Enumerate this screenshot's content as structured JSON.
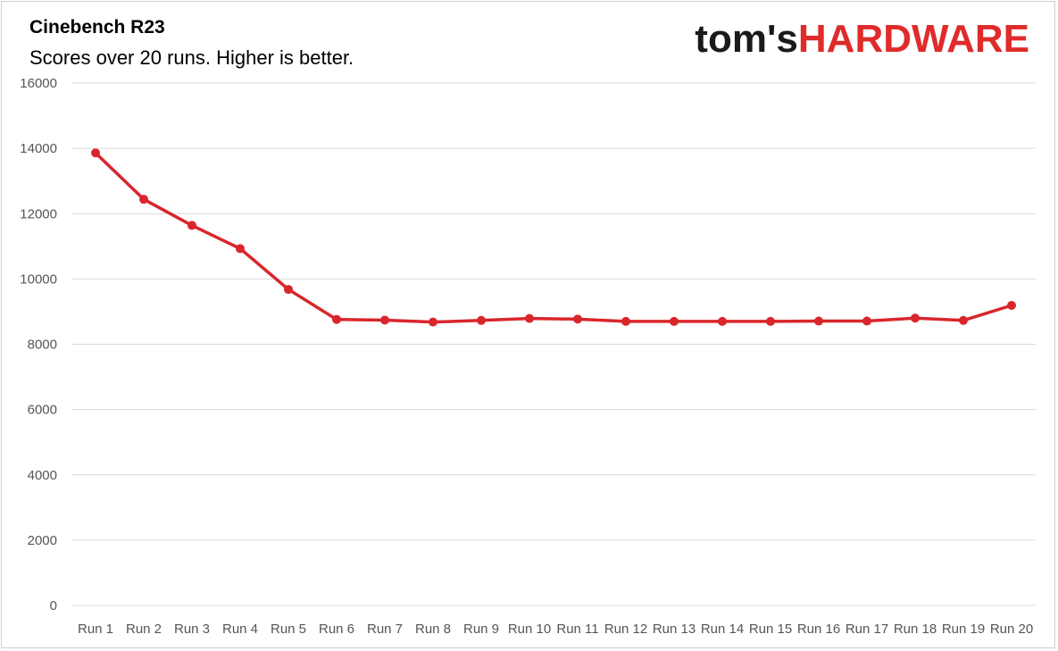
{
  "header": {
    "title": "Cinebench R23",
    "subtitle": "Scores over 20 runs. Higher is better."
  },
  "logo": {
    "part1": "tom's",
    "part2": "HARDWARE"
  },
  "colors": {
    "series": "#d9262c",
    "grid": "#d9d9d9",
    "logo_accent": "#e02b2b"
  },
  "chart_data": {
    "type": "line",
    "title": "Cinebench R23",
    "subtitle": "Scores over 20 runs. Higher is better.",
    "xlabel": "",
    "ylabel": "",
    "ylim": [
      0,
      16000
    ],
    "yticks": [
      0,
      2000,
      4000,
      6000,
      8000,
      10000,
      12000,
      14000,
      16000
    ],
    "grid": true,
    "legend": "none",
    "categories": [
      "Run 1",
      "Run 2",
      "Run 3",
      "Run 4",
      "Run 5",
      "Run 6",
      "Run 7",
      "Run 8",
      "Run 9",
      "Run 10",
      "Run 11",
      "Run 12",
      "Run 13",
      "Run 14",
      "Run 15",
      "Run 16",
      "Run 17",
      "Run 18",
      "Run 19",
      "Run 20"
    ],
    "series": [
      {
        "values": [
          13860,
          12440,
          11640,
          10930,
          9680,
          8760,
          8740,
          8680,
          8730,
          8790,
          8770,
          8700,
          8700,
          8700,
          8700,
          8710,
          8710,
          8800,
          8730,
          9190
        ]
      }
    ]
  }
}
